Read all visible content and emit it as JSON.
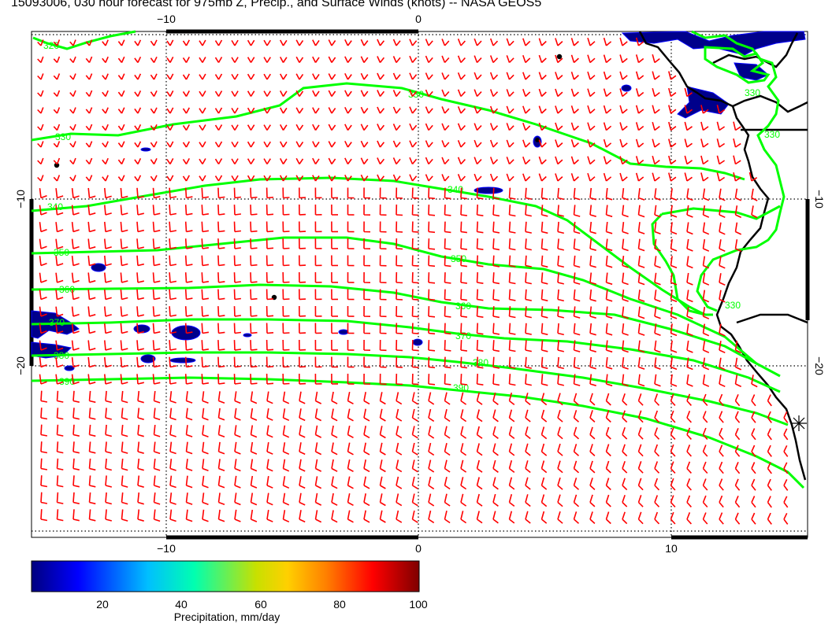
{
  "title": "15093006, 030 hour forecast for 975mb Z, Precip., and Surface Winds (knots) -- NASA GEOS5",
  "axes": {
    "top_labels": [
      "−10",
      "0"
    ],
    "bottom_labels": [
      "−10",
      "0",
      "10"
    ],
    "left_labels": [
      "−10",
      "−20"
    ],
    "right_labels": [
      "−10",
      "−20"
    ]
  },
  "contours": {
    "color": "#00ff00",
    "labels": [
      "320",
      "330",
      "330",
      "330",
      "330",
      "340",
      "340",
      "350",
      "350",
      "360",
      "360",
      "370",
      "370",
      "380",
      "380",
      "390",
      "390",
      "330"
    ]
  },
  "colorbar": {
    "ticks": [
      "20",
      "40",
      "60",
      "80",
      "100"
    ],
    "label": "Precipitation, mm/day",
    "colors": [
      "#00007f",
      "#0000ff",
      "#00bfff",
      "#00ffb0",
      "#c8e000",
      "#ffd000",
      "#ff8000",
      "#ff0000",
      "#7f0000"
    ]
  },
  "colors": {
    "wind_barbs": "#ff0000",
    "coastline": "#000000",
    "precip": "#00008b"
  }
}
